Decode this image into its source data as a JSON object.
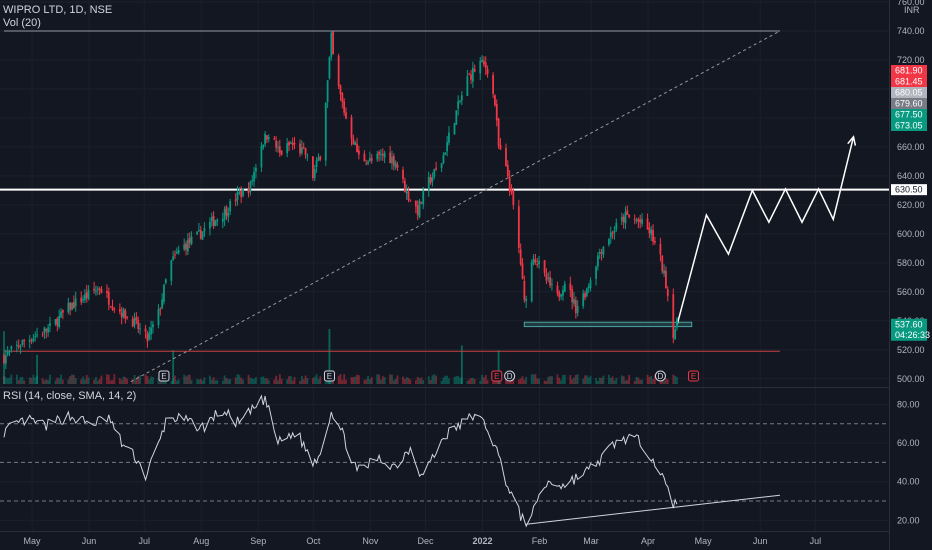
{
  "chart_data": [
    {
      "type": "candlestick",
      "legend": {
        "symbol": "WIPRO LTD, 1D, NSE",
        "volume": "Vol (20)"
      },
      "currency": "INR",
      "ylim": [
        495,
        760
      ],
      "y_ticks": [
        500,
        520,
        540,
        560,
        580,
        600,
        620,
        640,
        660,
        680,
        700,
        720,
        740,
        760
      ],
      "y_tick_labels": [
        "500.00",
        "520.00",
        "540.00",
        "560.00",
        "580.00",
        "600.00",
        "620.00",
        "640.00",
        "660.00",
        "680.00",
        "700.00",
        "720.00",
        "740.00",
        "760.00"
      ],
      "x_ticks": [
        "May",
        "Jun",
        "Jul",
        "Aug",
        "Sep",
        "Oct",
        "Nov",
        "Dec",
        "2022",
        "Feb",
        "Mar",
        "Apr",
        "May",
        "Jun",
        "Jul"
      ],
      "price_path": [
        [
          "2021-04-19",
          515
        ],
        [
          "2021-04-30",
          526
        ],
        [
          "2021-05-14",
          535
        ],
        [
          "2021-05-25",
          550
        ],
        [
          "2021-06-04",
          558
        ],
        [
          "2021-06-10",
          563
        ],
        [
          "2021-06-18",
          550
        ],
        [
          "2021-06-28",
          540
        ],
        [
          "2021-07-06",
          527
        ],
        [
          "2021-07-12",
          545
        ],
        [
          "2021-07-18",
          578
        ],
        [
          "2021-07-24",
          590
        ],
        [
          "2021-08-02",
          598
        ],
        [
          "2021-08-10",
          608
        ],
        [
          "2021-08-17",
          615
        ],
        [
          "2021-08-24",
          626
        ],
        [
          "2021-08-31",
          633
        ],
        [
          "2021-09-06",
          662
        ],
        [
          "2021-09-10",
          670
        ],
        [
          "2021-09-16",
          655
        ],
        [
          "2021-09-22",
          662
        ],
        [
          "2021-09-30",
          655
        ],
        [
          "2021-10-04",
          640
        ],
        [
          "2021-10-08",
          655
        ],
        [
          "2021-10-12",
          705
        ],
        [
          "2021-10-14",
          735
        ],
        [
          "2021-10-16",
          710
        ],
        [
          "2021-10-22",
          680
        ],
        [
          "2021-10-29",
          653
        ],
        [
          "2021-11-05",
          650
        ],
        [
          "2021-11-12",
          655
        ],
        [
          "2021-11-18",
          650
        ],
        [
          "2021-11-24",
          628
        ],
        [
          "2021-11-30",
          616
        ],
        [
          "2021-12-06",
          636
        ],
        [
          "2021-12-13",
          650
        ],
        [
          "2021-12-20",
          680
        ],
        [
          "2021-12-27",
          707
        ],
        [
          "2022-01-03",
          718
        ],
        [
          "2022-01-07",
          714
        ],
        [
          "2022-01-11",
          690
        ],
        [
          "2022-01-13",
          660
        ],
        [
          "2022-01-18",
          640
        ],
        [
          "2022-01-21",
          618
        ],
        [
          "2022-01-25",
          580
        ],
        [
          "2022-01-27",
          552
        ],
        [
          "2022-02-01",
          586
        ],
        [
          "2022-02-07",
          570
        ],
        [
          "2022-02-14",
          556
        ],
        [
          "2022-02-18",
          568
        ],
        [
          "2022-02-24",
          549
        ],
        [
          "2022-03-02",
          562
        ],
        [
          "2022-03-09",
          588
        ],
        [
          "2022-03-16",
          602
        ],
        [
          "2022-03-23",
          612
        ],
        [
          "2022-03-31",
          608
        ],
        [
          "2022-04-06",
          600
        ],
        [
          "2022-04-11",
          582
        ],
        [
          "2022-04-14",
          566
        ],
        [
          "2022-04-18",
          532
        ],
        [
          "2022-04-20",
          537.6
        ]
      ],
      "volume_spikes": [
        {
          "date": "2021-04-19",
          "level": 0.95
        },
        {
          "date": "2021-05-07",
          "level": 0.45
        },
        {
          "date": "2021-07-20",
          "level": 0.55
        },
        {
          "date": "2021-10-13",
          "level": 1.0
        },
        {
          "date": "2021-12-24",
          "level": 0.65
        },
        {
          "date": "2022-01-13",
          "level": 0.55
        }
      ],
      "event_markers": [
        {
          "date": "2021-07-15",
          "label": "E",
          "color": "#d1d4dc"
        },
        {
          "date": "2021-10-13",
          "label": "E",
          "color": "#d1d4dc"
        },
        {
          "date": "2022-01-12",
          "label": "E",
          "color": "#f23645"
        },
        {
          "date": "2022-01-19",
          "label": "D",
          "color": "#d1d4dc"
        },
        {
          "date": "2022-04-11",
          "label": "D",
          "color": "#d1d4dc"
        },
        {
          "date": "2022-04-29",
          "label": "E",
          "color": "#f23645"
        }
      ],
      "horizontal_lines": [
        {
          "name": "resistance",
          "price": 630.5,
          "color": "#ffffff"
        },
        {
          "name": "top-line",
          "price": 740,
          "from": "2021-04-19",
          "to": "2022-06-15",
          "color": "#9598a1"
        },
        {
          "name": "low-line",
          "price": 519,
          "from": "2021-04-19",
          "to": "2022-06-15",
          "color": "#c64141"
        }
      ],
      "trend_line": {
        "from": [
          "2021-06-27",
          498
        ],
        "to": [
          "2022-06-15",
          740
        ],
        "color": "#9598a1"
      },
      "support_box": {
        "from": "2022-01-27",
        "to": "2022-04-28",
        "low": 536,
        "high": 539,
        "color": "#4aa3a1"
      },
      "projection_path": [
        [
          "2022-04-20",
          537
        ],
        [
          "2022-05-06",
          613
        ],
        [
          "2022-05-18",
          586
        ],
        [
          "2022-05-31",
          630
        ],
        [
          "2022-06-09",
          608
        ],
        [
          "2022-06-18",
          631
        ],
        [
          "2022-06-27",
          608
        ],
        [
          "2022-07-06",
          631
        ],
        [
          "2022-07-14",
          610
        ],
        [
          "2022-07-25",
          667
        ]
      ],
      "price_labels": [
        {
          "text": "681.90",
          "price": 681.9,
          "color": "#f23645"
        },
        {
          "text": "681.45",
          "price": 681.45,
          "color": "#f23645"
        },
        {
          "text": "680.05",
          "price": 680.05,
          "color": "#b2b5be"
        },
        {
          "text": "679.60",
          "price": 679.6,
          "color": "#787b86"
        },
        {
          "text": "677.50",
          "price": 677.5,
          "color": "#089981"
        },
        {
          "text": "673.05",
          "price": 673.05,
          "color": "#089981"
        },
        {
          "text": "630.50",
          "price": 630.5,
          "color": "#ffffff"
        },
        {
          "text": "537.60",
          "price": 537.6,
          "color": "#089981",
          "sub": "04:26:33"
        }
      ]
    },
    {
      "type": "line",
      "legend": "RSI (14, close, SMA, 14, 2)",
      "ylim": [
        15,
        88
      ],
      "y_ticks": [
        20,
        40,
        60,
        80
      ],
      "y_tick_labels": [
        "20.00",
        "40.00",
        "60.00",
        "80.00"
      ],
      "bands": [
        70,
        50,
        30
      ],
      "series": [
        {
          "values": [
            [
              "2021-04-19",
              66
            ],
            [
              "2021-05-01",
              72
            ],
            [
              "2021-05-12",
              69
            ],
            [
              "2021-05-24",
              74
            ],
            [
              "2021-06-05",
              70
            ],
            [
              "2021-06-15",
              73
            ],
            [
              "2021-06-22",
              60
            ],
            [
              "2021-06-30",
              52
            ],
            [
              "2021-07-05",
              43
            ],
            [
              "2021-07-12",
              59
            ],
            [
              "2021-07-17",
              74
            ],
            [
              "2021-07-25",
              72
            ],
            [
              "2021-08-05",
              68
            ],
            [
              "2021-08-15",
              77
            ],
            [
              "2021-08-25",
              70
            ],
            [
              "2021-09-04",
              80
            ],
            [
              "2021-09-08",
              83
            ],
            [
              "2021-09-15",
              60
            ],
            [
              "2021-09-25",
              66
            ],
            [
              "2021-10-04",
              50
            ],
            [
              "2021-10-08",
              55
            ],
            [
              "2021-10-14",
              77
            ],
            [
              "2021-10-20",
              65
            ],
            [
              "2021-10-28",
              45
            ],
            [
              "2021-11-08",
              52
            ],
            [
              "2021-11-18",
              48
            ],
            [
              "2021-11-26",
              58
            ],
            [
              "2021-12-02",
              43
            ],
            [
              "2021-12-08",
              52
            ],
            [
              "2021-12-15",
              64
            ],
            [
              "2021-12-24",
              70
            ],
            [
              "2021-12-31",
              75
            ],
            [
              "2022-01-07",
              68
            ],
            [
              "2022-01-12",
              56
            ],
            [
              "2022-01-18",
              38
            ],
            [
              "2022-01-25",
              22
            ],
            [
              "2022-01-30",
              18
            ],
            [
              "2022-02-04",
              34
            ],
            [
              "2022-02-10",
              40
            ],
            [
              "2022-02-17",
              38
            ],
            [
              "2022-02-24",
              42
            ],
            [
              "2022-03-03",
              46
            ],
            [
              "2022-03-10",
              52
            ],
            [
              "2022-03-17",
              60
            ],
            [
              "2022-03-25",
              63
            ],
            [
              "2022-04-01",
              60
            ],
            [
              "2022-04-07",
              52
            ],
            [
              "2022-04-13",
              40
            ],
            [
              "2022-04-18",
              28
            ],
            [
              "2022-04-20",
              30
            ]
          ]
        }
      ],
      "trend_line": {
        "from": [
          "2022-01-28",
          18
        ],
        "to": [
          "2022-06-15",
          33
        ],
        "color": "#d1d4dc"
      }
    }
  ]
}
